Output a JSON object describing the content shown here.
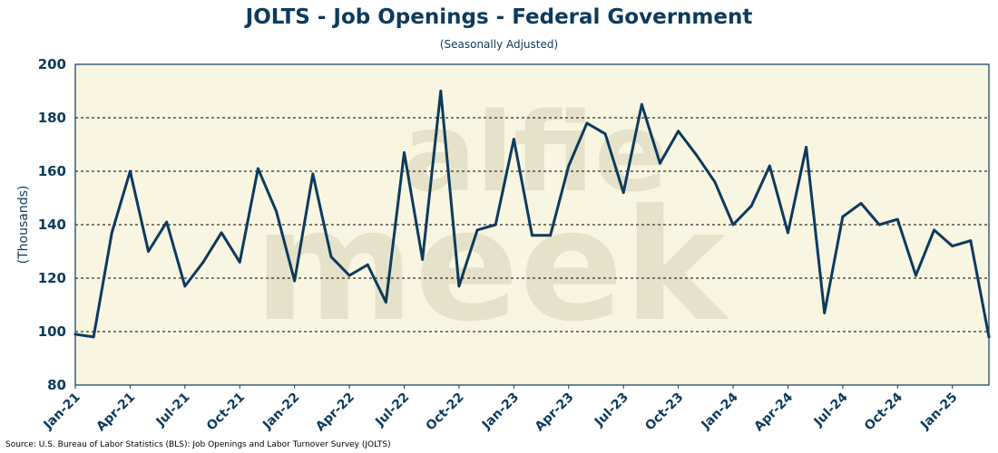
{
  "title": "JOLTS - Job Openings - Federal Government",
  "subtitle": "(Seasonally Adjusted)",
  "source": "Source: U.S. Bureau of Labor Statistics (BLS): Job Openings and Labor Turnover Survey (JOLTS)",
  "watermark": {
    "line1": "alfie",
    "line2": "meek"
  },
  "colors": {
    "line": "#0d3a5c",
    "plot_background": "#f8f5e1",
    "text": "#0d3a5c",
    "grid": "#000000",
    "watermark": "#d9d3b8"
  },
  "chart_data": {
    "type": "line",
    "title": "JOLTS - Job Openings - Federal Government",
    "subtitle": "(Seasonally Adjusted)",
    "xlabel": "",
    "ylabel": "(Thousands)",
    "ylim": [
      80,
      200
    ],
    "yticks": [
      80,
      100,
      120,
      140,
      160,
      180,
      200
    ],
    "grid": "horizontal dashed",
    "legend": "none",
    "xtick_labels": [
      "Jan-21",
      "Apr-21",
      "Jul-21",
      "Oct-21",
      "Jan-22",
      "Apr-22",
      "Jul-22",
      "Oct-22",
      "Jan-23",
      "Apr-23",
      "Jul-23",
      "Oct-23",
      "Jan-24",
      "Apr-24",
      "Jul-24",
      "Oct-24",
      "Jan-25"
    ],
    "x": [
      "Jan-21",
      "Feb-21",
      "Mar-21",
      "Apr-21",
      "May-21",
      "Jun-21",
      "Jul-21",
      "Aug-21",
      "Sep-21",
      "Oct-21",
      "Nov-21",
      "Dec-21",
      "Jan-22",
      "Feb-22",
      "Mar-22",
      "Apr-22",
      "May-22",
      "Jun-22",
      "Jul-22",
      "Aug-22",
      "Sep-22",
      "Oct-22",
      "Nov-22",
      "Dec-22",
      "Jan-23",
      "Feb-23",
      "Mar-23",
      "Apr-23",
      "May-23",
      "Jun-23",
      "Jul-23",
      "Aug-23",
      "Sep-23",
      "Oct-23",
      "Nov-23",
      "Dec-23",
      "Jan-24",
      "Feb-24",
      "Mar-24",
      "Apr-24",
      "May-24",
      "Jun-24",
      "Jul-24",
      "Aug-24",
      "Sep-24",
      "Oct-24",
      "Nov-24",
      "Dec-24",
      "Jan-25",
      "Feb-25",
      "Mar-25"
    ],
    "values": [
      99,
      98,
      137,
      160,
      130,
      141,
      117,
      126,
      137,
      126,
      161,
      145,
      119,
      159,
      128,
      121,
      125,
      111,
      167,
      127,
      190,
      117,
      138,
      140,
      172,
      136,
      136,
      162,
      178,
      174,
      152,
      185,
      163,
      175,
      166,
      156,
      140,
      147,
      162,
      137,
      169,
      107,
      143,
      148,
      140,
      142,
      121,
      138,
      132,
      134,
      98
    ]
  }
}
